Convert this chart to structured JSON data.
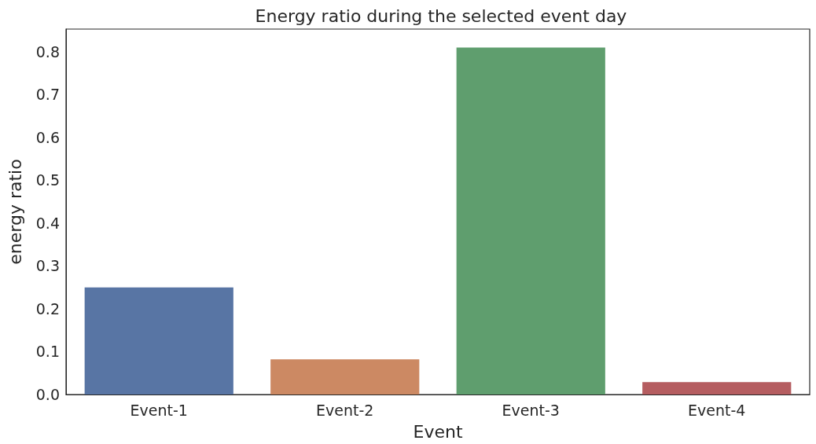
{
  "chart_data": {
    "type": "bar",
    "title": "Energy ratio during the selected event day",
    "xlabel": "Event",
    "ylabel": "energy ratio",
    "categories": [
      "Event-1",
      "Event-2",
      "Event-3",
      "Event-4"
    ],
    "values": [
      0.25,
      0.082,
      0.81,
      0.029
    ],
    "colors": [
      "#5875a4",
      "#cc8963",
      "#5f9e6e",
      "#b55d60"
    ],
    "ylim": [
      0,
      0.853
    ],
    "yticks": [
      {
        "value": 0,
        "label": "0.0"
      },
      {
        "value": 0.1,
        "label": "0.1"
      },
      {
        "value": 0.2,
        "label": "0.2"
      },
      {
        "value": 0.3,
        "label": "0.3"
      },
      {
        "value": 0.4,
        "label": "0.4"
      },
      {
        "value": 0.5,
        "label": "0.5"
      },
      {
        "value": 0.6,
        "label": "0.6"
      },
      {
        "value": 0.7,
        "label": "0.7"
      },
      {
        "value": 0.8,
        "label": "0.8"
      }
    ],
    "grid": false
  }
}
